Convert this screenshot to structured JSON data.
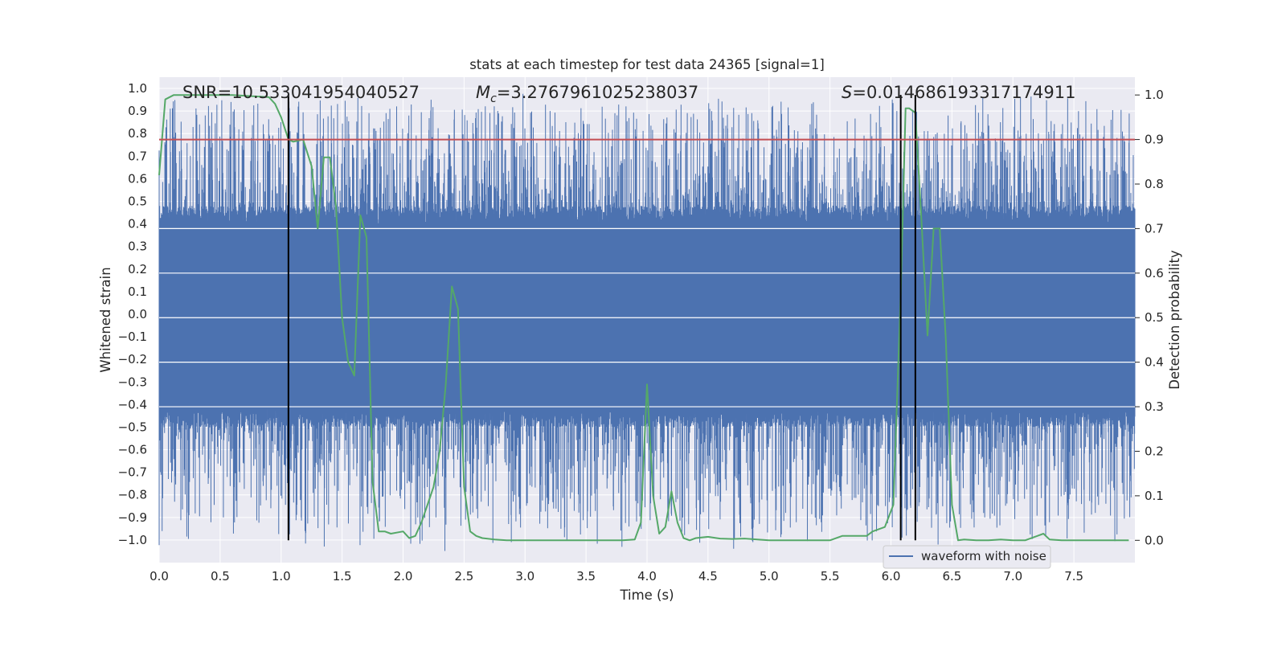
{
  "chart_data": {
    "type": "line",
    "title": "stats at each timestep for test data 24365 [signal=1]",
    "xlabel": "Time (s)",
    "ylabel_left": "Whitened strain",
    "ylabel_right": "Detection probability",
    "xlim": [
      0.0,
      8.0
    ],
    "ylim_left": [
      -1.1,
      1.05
    ],
    "ylim_right": [
      -0.05,
      1.04
    ],
    "x_ticks": [
      "0.0",
      "0.5",
      "1.0",
      "1.5",
      "2.0",
      "2.5",
      "3.0",
      "3.5",
      "4.0",
      "4.5",
      "5.0",
      "5.5",
      "6.0",
      "6.5",
      "7.0",
      "7.5"
    ],
    "y_left_ticks": [
      "1.0",
      "0.9",
      "0.8",
      "0.7",
      "0.6",
      "0.5",
      "0.4",
      "0.3",
      "0.2",
      "0.1",
      "0.0",
      "-0.1",
      "-0.2",
      "-0.3",
      "-0.4",
      "-0.5",
      "-0.6",
      "-0.7",
      "-0.8",
      "-0.9",
      "-1.0"
    ],
    "y_right_ticks": [
      "1.0",
      "0.9",
      "0.8",
      "0.7",
      "0.6",
      "0.5",
      "0.4",
      "0.3",
      "0.2",
      "0.1",
      "0.0"
    ],
    "grid": true,
    "annotations": {
      "snr": "SNR=10.533041954040527",
      "mc_symbol": "M",
      "mc_sub": "c",
      "mc_value": "=3.2767961025238037",
      "s_symbol": "S",
      "s_value": "=0.014686193317174911"
    },
    "threshold": {
      "axis": "right",
      "value": 0.9,
      "color": "#c44e52"
    },
    "vertical_markers": [
      1.06,
      6.08,
      6.2
    ],
    "legend": {
      "label": "waveform with noise",
      "position": "lower-right"
    },
    "colors": {
      "waveform": "#4c72b0",
      "probability": "#55a868",
      "markers": "#000000",
      "background": "#eaeaf2",
      "grid": "#ffffff"
    },
    "series": [
      {
        "name": "waveform with noise",
        "axis": "left",
        "description": "dense whitened strain noise, core band about -0.4 to 0.4",
        "core_range": [
          -0.42,
          0.4
        ],
        "peak_range": [
          -0.97,
          0.9
        ]
      },
      {
        "name": "detection probability",
        "axis": "right",
        "x": [
          0.0,
          0.05,
          0.12,
          0.3,
          0.6,
          0.9,
          0.95,
          1.0,
          1.06,
          1.1,
          1.18,
          1.25,
          1.3,
          1.35,
          1.4,
          1.45,
          1.5,
          1.55,
          1.6,
          1.65,
          1.7,
          1.75,
          1.8,
          1.85,
          1.9,
          2.0,
          2.05,
          2.1,
          2.15,
          2.2,
          2.25,
          2.3,
          2.35,
          2.4,
          2.45,
          2.5,
          2.55,
          2.6,
          2.65,
          2.75,
          2.85,
          3.0,
          3.2,
          3.5,
          3.8,
          3.9,
          3.95,
          4.0,
          4.05,
          4.1,
          4.15,
          4.2,
          4.25,
          4.3,
          4.35,
          4.4,
          4.5,
          4.6,
          4.7,
          4.8,
          5.0,
          5.3,
          5.5,
          5.6,
          5.7,
          5.8,
          5.85,
          5.95,
          6.02,
          6.08,
          6.12,
          6.15,
          6.2,
          6.25,
          6.3,
          6.35,
          6.4,
          6.45,
          6.5,
          6.55,
          6.6,
          6.7,
          6.8,
          6.9,
          7.0,
          7.1,
          7.2,
          7.25,
          7.3,
          7.4,
          7.5,
          7.7,
          7.9,
          7.95
        ],
        "y": [
          0.82,
          0.99,
          1.0,
          1.0,
          1.0,
          0.995,
          0.98,
          0.95,
          0.9,
          0.895,
          0.9,
          0.84,
          0.7,
          0.86,
          0.86,
          0.75,
          0.5,
          0.4,
          0.37,
          0.73,
          0.68,
          0.13,
          0.02,
          0.02,
          0.015,
          0.02,
          0.005,
          0.01,
          0.04,
          0.08,
          0.12,
          0.2,
          0.35,
          0.57,
          0.52,
          0.12,
          0.02,
          0.01,
          0.005,
          0.002,
          0.0,
          0.0,
          0.0,
          0.0,
          0.0,
          0.002,
          0.04,
          0.35,
          0.1,
          0.015,
          0.03,
          0.11,
          0.04,
          0.005,
          0.0,
          0.005,
          0.008,
          0.004,
          0.003,
          0.004,
          0.0,
          0.0,
          0.0,
          0.01,
          0.01,
          0.01,
          0.02,
          0.03,
          0.08,
          0.55,
          0.97,
          0.97,
          0.96,
          0.72,
          0.46,
          0.7,
          0.7,
          0.45,
          0.08,
          0.0,
          0.002,
          0.0,
          0.0,
          0.002,
          0.0,
          0.0,
          0.01,
          0.015,
          0.002,
          0.0,
          0.0,
          0.0,
          0.0,
          0.0
        ]
      }
    ]
  }
}
